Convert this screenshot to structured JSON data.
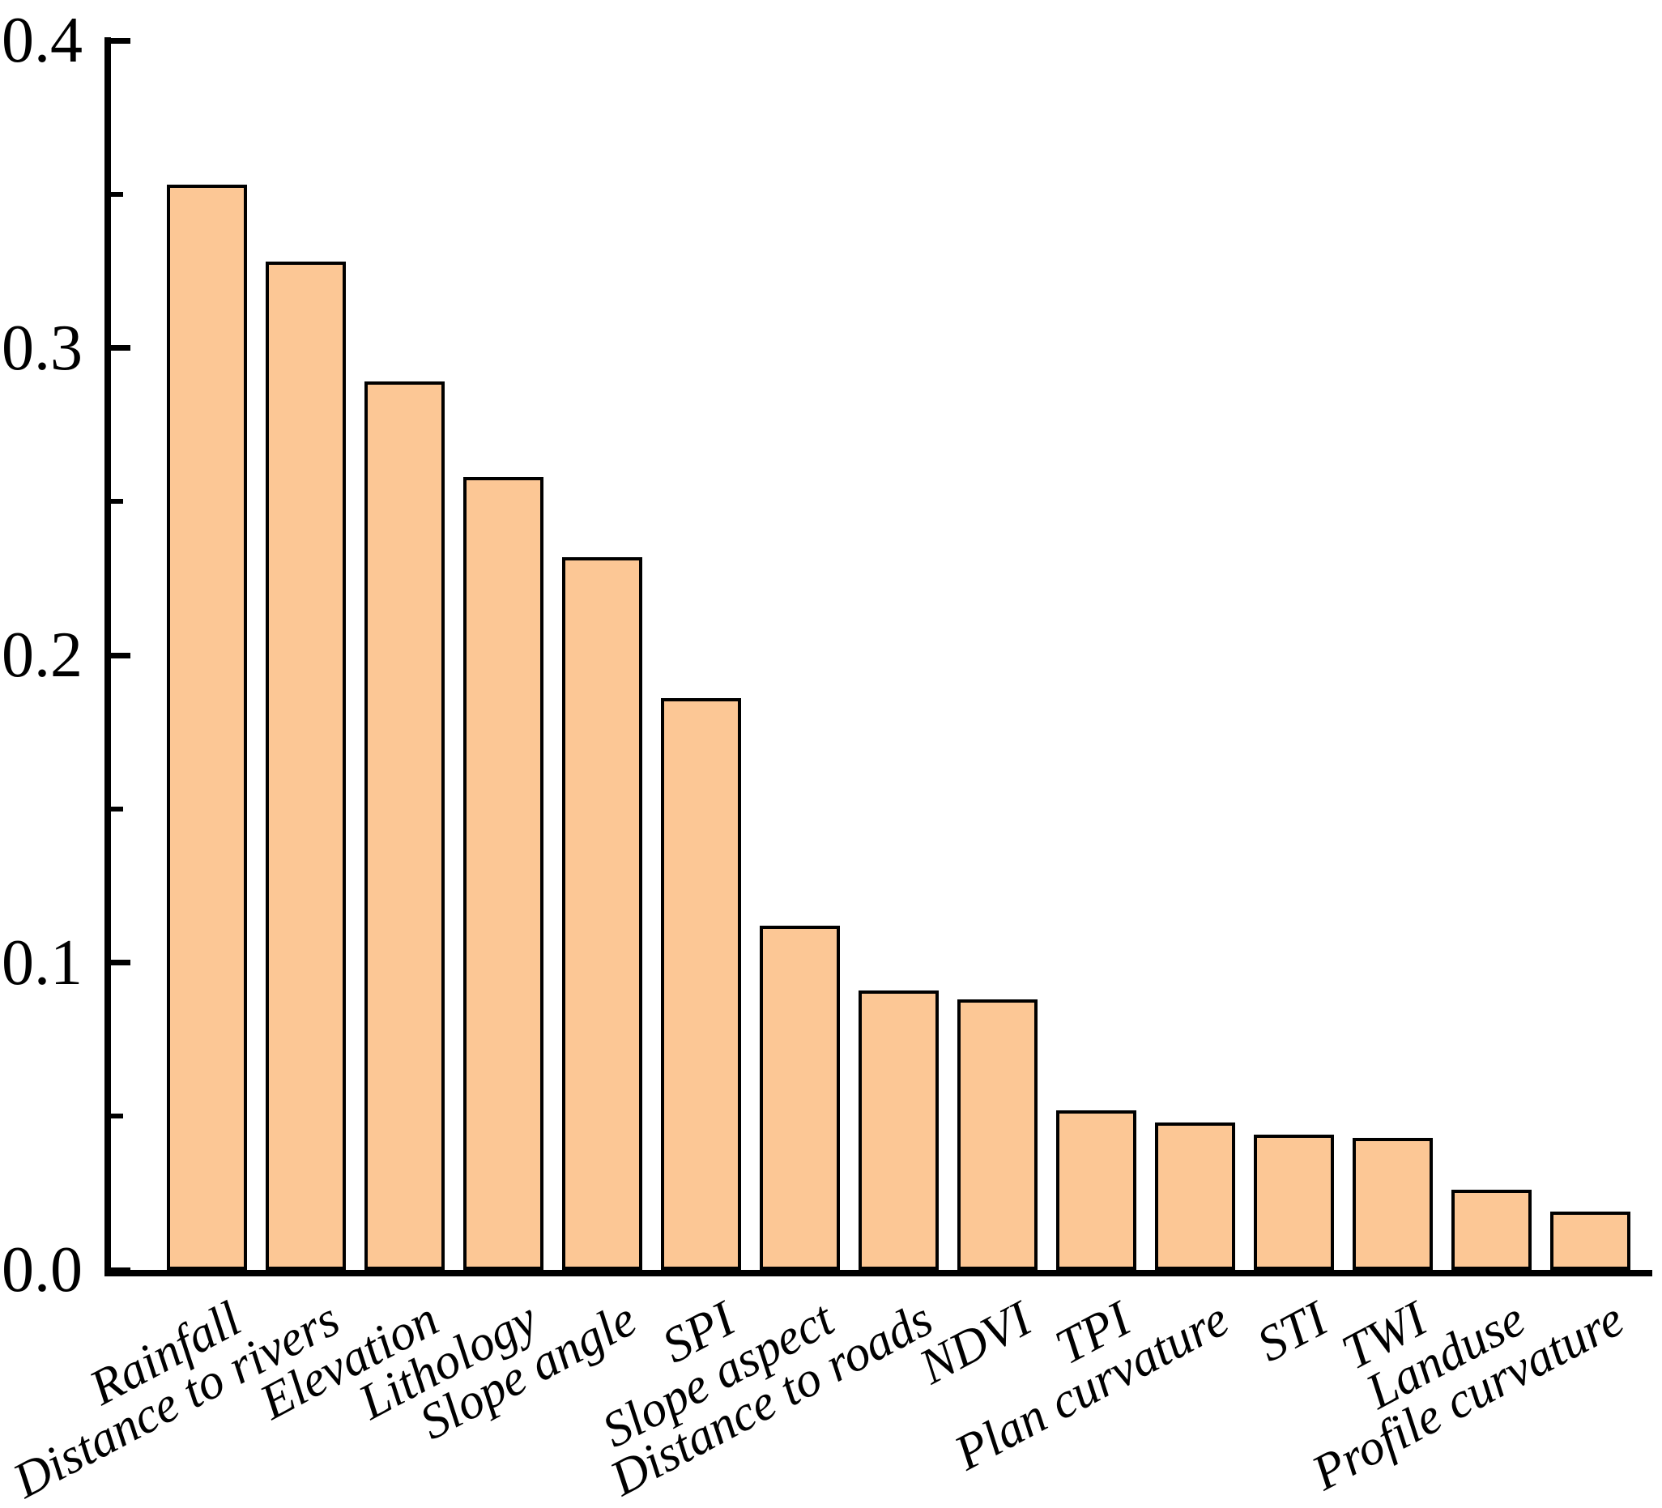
{
  "chart_data": {
    "type": "bar",
    "title": "",
    "xlabel": "",
    "ylabel": "",
    "categories": [
      "Rainfall",
      "Distance to rivers",
      "Elevation",
      "Lithology",
      "Slope angle",
      "SPI",
      "Slope aspect",
      "Distance to roads",
      "NDVI",
      "TPI",
      "Plan curvature",
      "STI",
      "TWI",
      "Landuse",
      "Profile curvature"
    ],
    "values": [
      0.353,
      0.328,
      0.289,
      0.258,
      0.232,
      0.186,
      0.112,
      0.091,
      0.088,
      0.052,
      0.048,
      0.044,
      0.043,
      0.026,
      0.019
    ],
    "ylim": [
      0,
      0.4
    ],
    "ytick_major_values": [
      0.0,
      0.1,
      0.2,
      0.3,
      0.4
    ],
    "ytick_major_labels": [
      "0.0",
      "0.1",
      "0.2",
      "0.3",
      "0.4"
    ],
    "ytick_minor_values": [
      0.05,
      0.15,
      0.25,
      0.35
    ],
    "grid": "off",
    "legend": "none",
    "x_label_rotation_deg": 28,
    "colors": {
      "bar_fill": "#fcc795",
      "bar_edge": "#000000",
      "axis": "#000000",
      "text": "#000000",
      "background": "#ffffff"
    }
  }
}
